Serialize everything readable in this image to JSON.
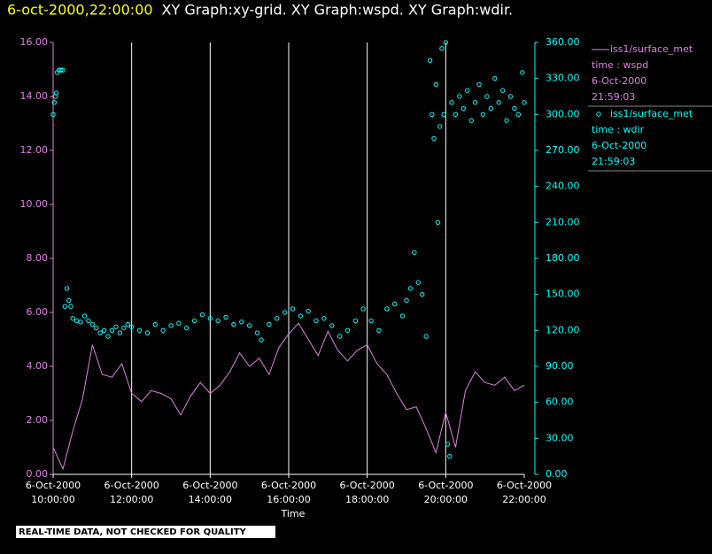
{
  "chart_data": {
    "type": "line",
    "title_time": "6-oct-2000,22:00:00",
    "title": "XY Graph:xy-grid.  XY Graph:wspd.  XY Graph:wdir.",
    "xlabel": "Time",
    "footer": "REAL-TIME DATA, NOT CHECKED FOR QUALITY",
    "xlim": [
      10,
      22
    ],
    "xticks": [
      {
        "value": 10,
        "label": "6-Oct-2000 10:00:00"
      },
      {
        "value": 12,
        "label": "6-Oct-2000 12:00:00"
      },
      {
        "value": 14,
        "label": "6-Oct-2000 14:00:00"
      },
      {
        "value": 16,
        "label": "6-Oct-2000 16:00:00"
      },
      {
        "value": 18,
        "label": "6-Oct-2000 18:00:00"
      },
      {
        "value": 20,
        "label": "6-Oct-2000 20:00:00"
      },
      {
        "value": 22,
        "label": "6-Oct-2000 22:00:00"
      }
    ],
    "ylim": [
      0,
      16
    ],
    "yticks": [
      {
        "value": 0,
        "label": "0.00"
      },
      {
        "value": 2,
        "label": "2.00"
      },
      {
        "value": 4,
        "label": "4.00"
      },
      {
        "value": 6,
        "label": "6.00"
      },
      {
        "value": 8,
        "label": "8.00"
      },
      {
        "value": 10,
        "label": "10.00"
      },
      {
        "value": 12,
        "label": "12.00"
      },
      {
        "value": 14,
        "label": "14.00"
      },
      {
        "value": 16,
        "label": "16.00"
      }
    ],
    "y2lim": [
      0,
      360
    ],
    "y2ticks": [
      {
        "value": 0,
        "label": "0.00"
      },
      {
        "value": 30,
        "label": "30.00"
      },
      {
        "value": 60,
        "label": "60.00"
      },
      {
        "value": 90,
        "label": "90.00"
      },
      {
        "value": 120,
        "label": "120.00"
      },
      {
        "value": 150,
        "label": "150.00"
      },
      {
        "value": 180,
        "label": "180.00"
      },
      {
        "value": 210,
        "label": "210.00"
      },
      {
        "value": 240,
        "label": "240.00"
      },
      {
        "value": 270,
        "label": "270.00"
      },
      {
        "value": 300,
        "label": "300.00"
      },
      {
        "value": 330,
        "label": "330.00"
      },
      {
        "value": 360,
        "label": "360.00"
      }
    ],
    "grid": "x",
    "series": [
      {
        "name": "iss1/surface_met",
        "legend_lines": [
          "time : wspd",
          "6-Oct-2000",
          "21:59:03"
        ],
        "type": "line",
        "color": "#e080e0",
        "x": [
          10,
          10.25,
          10.5,
          10.75,
          11,
          11.25,
          11.5,
          11.75,
          12,
          12.25,
          12.5,
          12.75,
          13,
          13.25,
          13.5,
          13.75,
          14,
          14.25,
          14.5,
          14.75,
          15,
          15.25,
          15.5,
          15.75,
          16,
          16.25,
          16.5,
          16.75,
          17,
          17.25,
          17.5,
          17.75,
          18,
          18.25,
          18.5,
          18.75,
          19,
          19.25,
          19.5,
          19.75,
          20,
          20.25,
          20.5,
          20.75,
          21,
          21.25,
          21.5,
          21.75,
          22
        ],
        "values": [
          1.0,
          0.2,
          1.6,
          2.8,
          4.8,
          3.7,
          3.6,
          4.1,
          3.0,
          2.7,
          3.1,
          3.0,
          2.8,
          2.2,
          2.9,
          3.4,
          3.0,
          3.3,
          3.8,
          4.5,
          4.0,
          4.3,
          3.7,
          4.7,
          5.2,
          5.6,
          5.0,
          4.4,
          5.3,
          4.6,
          4.2,
          4.6,
          4.8,
          4.1,
          3.7,
          3.0,
          2.4,
          2.5,
          1.7,
          0.8,
          2.3,
          1.0,
          3.1,
          3.8,
          3.4,
          3.3,
          3.6,
          3.1,
          3.3
        ]
      },
      {
        "name": "iss1/surface_met",
        "legend_lines": [
          "time : wdir",
          "6-Oct-2000",
          "21:59:03"
        ],
        "type": "scatter",
        "axis": "y2",
        "color": "#00ffff",
        "x": [
          10.0,
          10.03,
          10.06,
          10.08,
          10.1,
          10.15,
          10.2,
          10.25,
          10.3,
          10.35,
          10.4,
          10.45,
          10.5,
          10.6,
          10.7,
          10.8,
          10.9,
          11.0,
          11.1,
          11.2,
          11.3,
          11.4,
          11.5,
          11.6,
          11.7,
          11.8,
          11.9,
          12.0,
          12.2,
          12.4,
          12.6,
          12.8,
          13.0,
          13.2,
          13.4,
          13.6,
          13.8,
          14.0,
          14.2,
          14.4,
          14.6,
          14.8,
          15.0,
          15.2,
          15.3,
          15.5,
          15.7,
          15.9,
          16.1,
          16.3,
          16.5,
          16.7,
          16.9,
          17.1,
          17.3,
          17.5,
          17.7,
          17.9,
          18.1,
          18.3,
          18.5,
          18.7,
          18.9,
          19.0,
          19.1,
          19.2,
          19.3,
          19.4,
          19.5,
          19.6,
          19.65,
          19.7,
          19.75,
          19.8,
          19.85,
          19.9,
          19.95,
          20.0,
          20.05,
          20.1,
          20.15,
          20.25,
          20.35,
          20.45,
          20.55,
          20.65,
          20.75,
          20.85,
          20.95,
          21.05,
          21.15,
          21.25,
          21.35,
          21.45,
          21.55,
          21.65,
          21.75,
          21.85,
          21.95,
          22.0
        ],
        "values": [
          300,
          310,
          315,
          318,
          335,
          337,
          337,
          337,
          140,
          155,
          145,
          140,
          130,
          128,
          127,
          132,
          128,
          125,
          122,
          118,
          120,
          115,
          120,
          123,
          118,
          122,
          125,
          123,
          120,
          118,
          125,
          120,
          124,
          126,
          122,
          128,
          133,
          130,
          128,
          131,
          125,
          127,
          124,
          118,
          112,
          125,
          130,
          135,
          138,
          132,
          136,
          128,
          130,
          124,
          115,
          120,
          128,
          138,
          128,
          120,
          138,
          142,
          132,
          145,
          155,
          185,
          160,
          150,
          115,
          345,
          300,
          280,
          325,
          210,
          290,
          355,
          300,
          360,
          25,
          15,
          310,
          300,
          315,
          305,
          320,
          295,
          310,
          325,
          300,
          315,
          305,
          330,
          310,
          320,
          295,
          315,
          305,
          300,
          335,
          310
        ]
      }
    ]
  }
}
